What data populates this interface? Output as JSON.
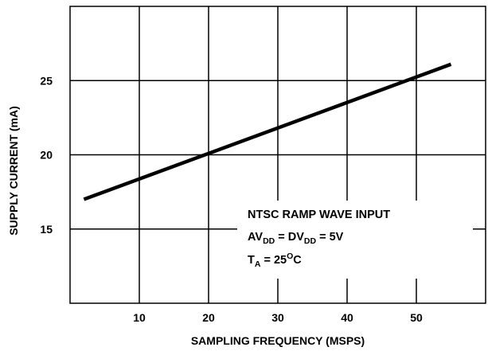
{
  "chart_data": {
    "type": "line",
    "title": "",
    "xlabel": "SAMPLING FREQUENCY (MSPS)",
    "ylabel": "SUPPLY CURRENT (mA)",
    "xlim": [
      0,
      60
    ],
    "ylim": [
      10,
      30
    ],
    "x_ticks": [
      10,
      20,
      30,
      40,
      50
    ],
    "x_tick_labels": [
      "10",
      "20",
      "30",
      "40",
      "50"
    ],
    "y_ticks": [
      15,
      20,
      25
    ],
    "y_tick_labels": [
      "15",
      "20",
      "25"
    ],
    "grid": true,
    "legend": "none",
    "series": [
      {
        "x": [
          2,
          55
        ],
        "y": [
          17.0,
          26.1
        ]
      }
    ],
    "annotations": [
      {
        "id": "line1",
        "parts": [
          {
            "t": "NTSC RAMP WAVE INPUT",
            "sub": false
          }
        ]
      },
      {
        "id": "line2",
        "parts": [
          {
            "t": "AV",
            "sub": false
          },
          {
            "t": "DD",
            "sub": true
          },
          {
            "t": " = DV",
            "sub": false
          },
          {
            "t": "DD",
            "sub": true
          },
          {
            "t": " = 5V",
            "sub": false
          }
        ]
      },
      {
        "id": "line3",
        "parts": [
          {
            "t": "T",
            "sub": false
          },
          {
            "t": "A",
            "sub": true
          },
          {
            "t": " = 25",
            "sub": false
          },
          {
            "t": "O",
            "sub": "sup"
          },
          {
            "t": "C",
            "sub": false
          }
        ]
      }
    ]
  }
}
